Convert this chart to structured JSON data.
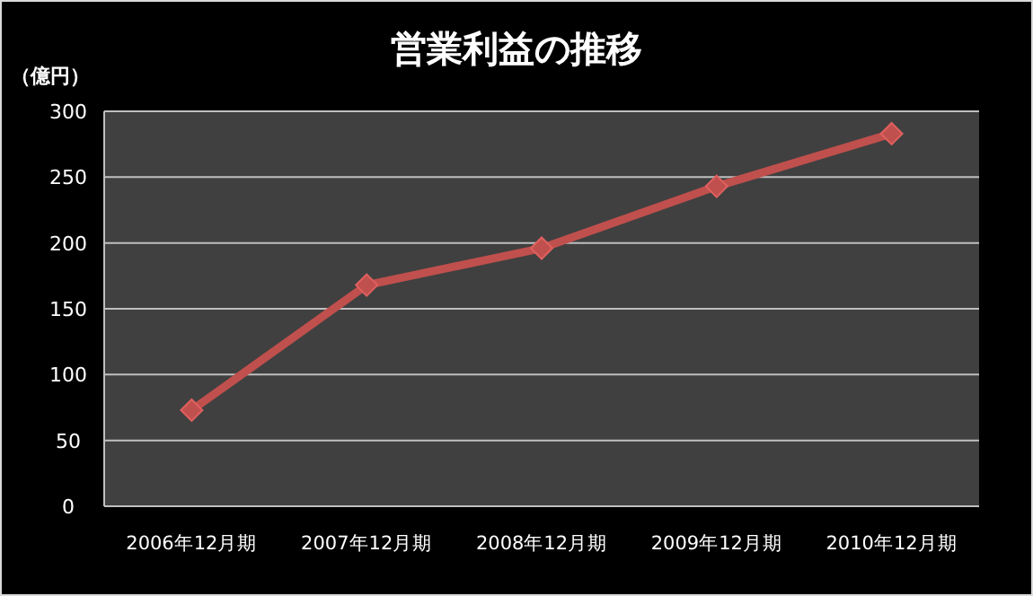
{
  "chart_data": {
    "type": "line",
    "title": "営業利益の推移",
    "ylabel": "（億円）",
    "categories": [
      "2006年12月期",
      "2007年12月期",
      "2008年12月期",
      "2009年12月期",
      "2010年12月期"
    ],
    "series": [
      {
        "color": "#c0504d",
        "values": [
          73,
          168,
          196,
          243,
          283
        ]
      }
    ],
    "ylim": [
      0,
      300
    ],
    "yticks": [
      0,
      50,
      100,
      150,
      200,
      250,
      300
    ],
    "grid": "y",
    "marker": "diamond",
    "line_style": "solid"
  }
}
